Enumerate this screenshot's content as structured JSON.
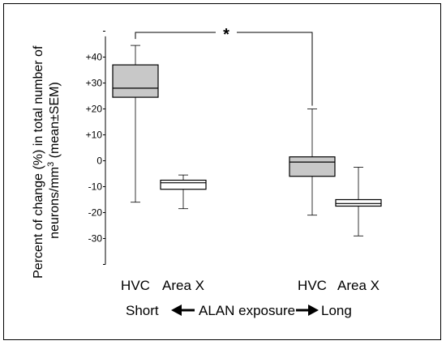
{
  "chart_data": {
    "type": "box",
    "ylabel_line1": "Percent of change (%) in total number of",
    "ylabel_line2_prefix": "neurons/mm",
    "ylabel_line2_sup": "3",
    "ylabel_line2_suffix": " (mean±SEM)",
    "ylim": [
      -40,
      48
    ],
    "yticks": [
      {
        "value": 40,
        "label": "+40"
      },
      {
        "value": 30,
        "label": "+30"
      },
      {
        "value": 20,
        "label": "+20"
      },
      {
        "value": 10,
        "label": "+10"
      },
      {
        "value": 0,
        "label": "0"
      },
      {
        "value": -10,
        "label": "-10"
      },
      {
        "value": -20,
        "label": "-20"
      },
      {
        "value": -30,
        "label": "-30"
      }
    ],
    "boxes": [
      {
        "category": "HVC",
        "group": "Short",
        "fill": "#c8c8c8",
        "whisker_low": -16,
        "q1": 24.5,
        "median": 28,
        "q3": 37,
        "whisker_high": 44.5
      },
      {
        "category": "Area X",
        "group": "Short",
        "fill": "#ffffff",
        "whisker_low": -18.5,
        "q1": -11,
        "median": -8.5,
        "q3": -7.5,
        "whisker_high": -5.5
      },
      {
        "category": "HVC",
        "group": "Long",
        "fill": "#c8c8c8",
        "whisker_low": -21,
        "q1": -6,
        "median": -0.5,
        "q3": 1.5,
        "whisker_high": 20
      },
      {
        "category": "Area X",
        "group": "Long",
        "fill": "#ffffff",
        "whisker_low": -29,
        "q1": -17.5,
        "median": -16.5,
        "q3": -15,
        "whisker_high": -2.5
      }
    ],
    "significance": {
      "from_box": 0,
      "to_box": 2,
      "label": "*"
    },
    "exposure_label": {
      "left": "Short",
      "middle": "ALAN exposure",
      "right": "Long"
    }
  }
}
